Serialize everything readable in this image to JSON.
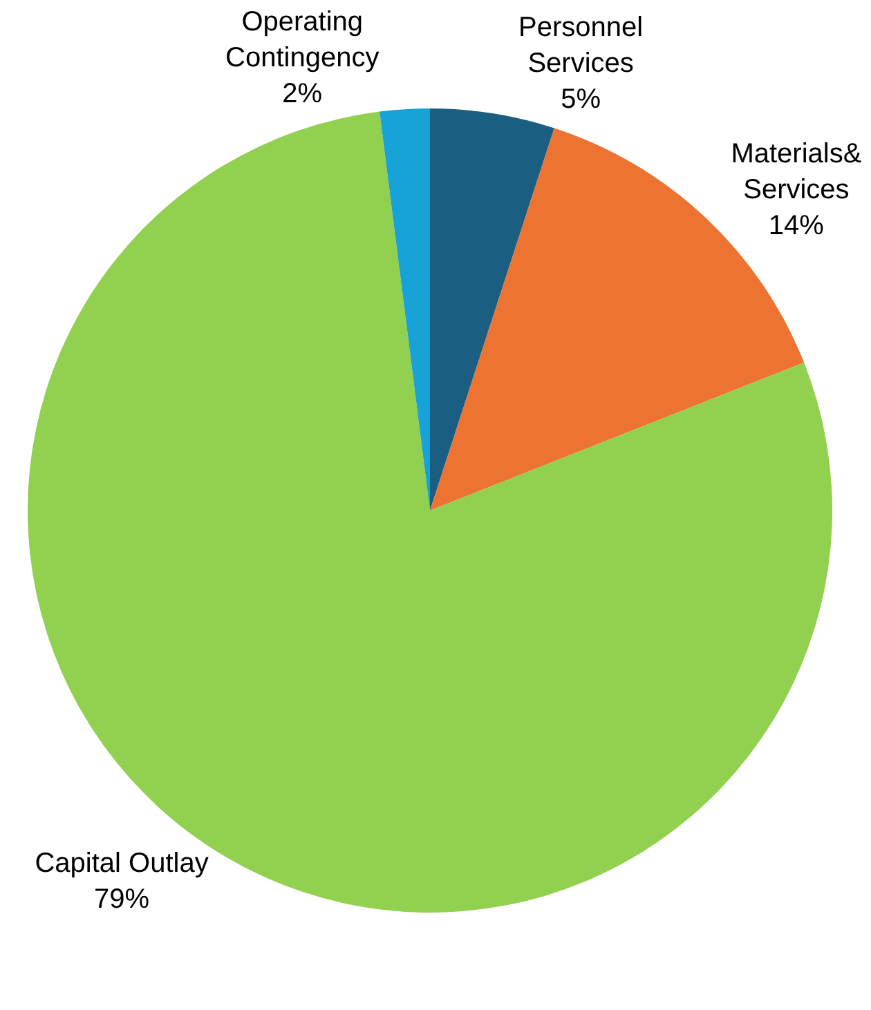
{
  "chart_data": {
    "type": "pie",
    "categories": [
      "Personnel\nServices",
      "Materials&\nServices",
      "Capital Outlay",
      "Operating\nContingency"
    ],
    "values": [
      5,
      14,
      79,
      2
    ],
    "value_labels": [
      "5%",
      "14%",
      "79%",
      "2%"
    ],
    "colors": [
      "#1a5f82",
      "#ec7332",
      "#92d050",
      "#17a2d8"
    ],
    "legend": false
  }
}
